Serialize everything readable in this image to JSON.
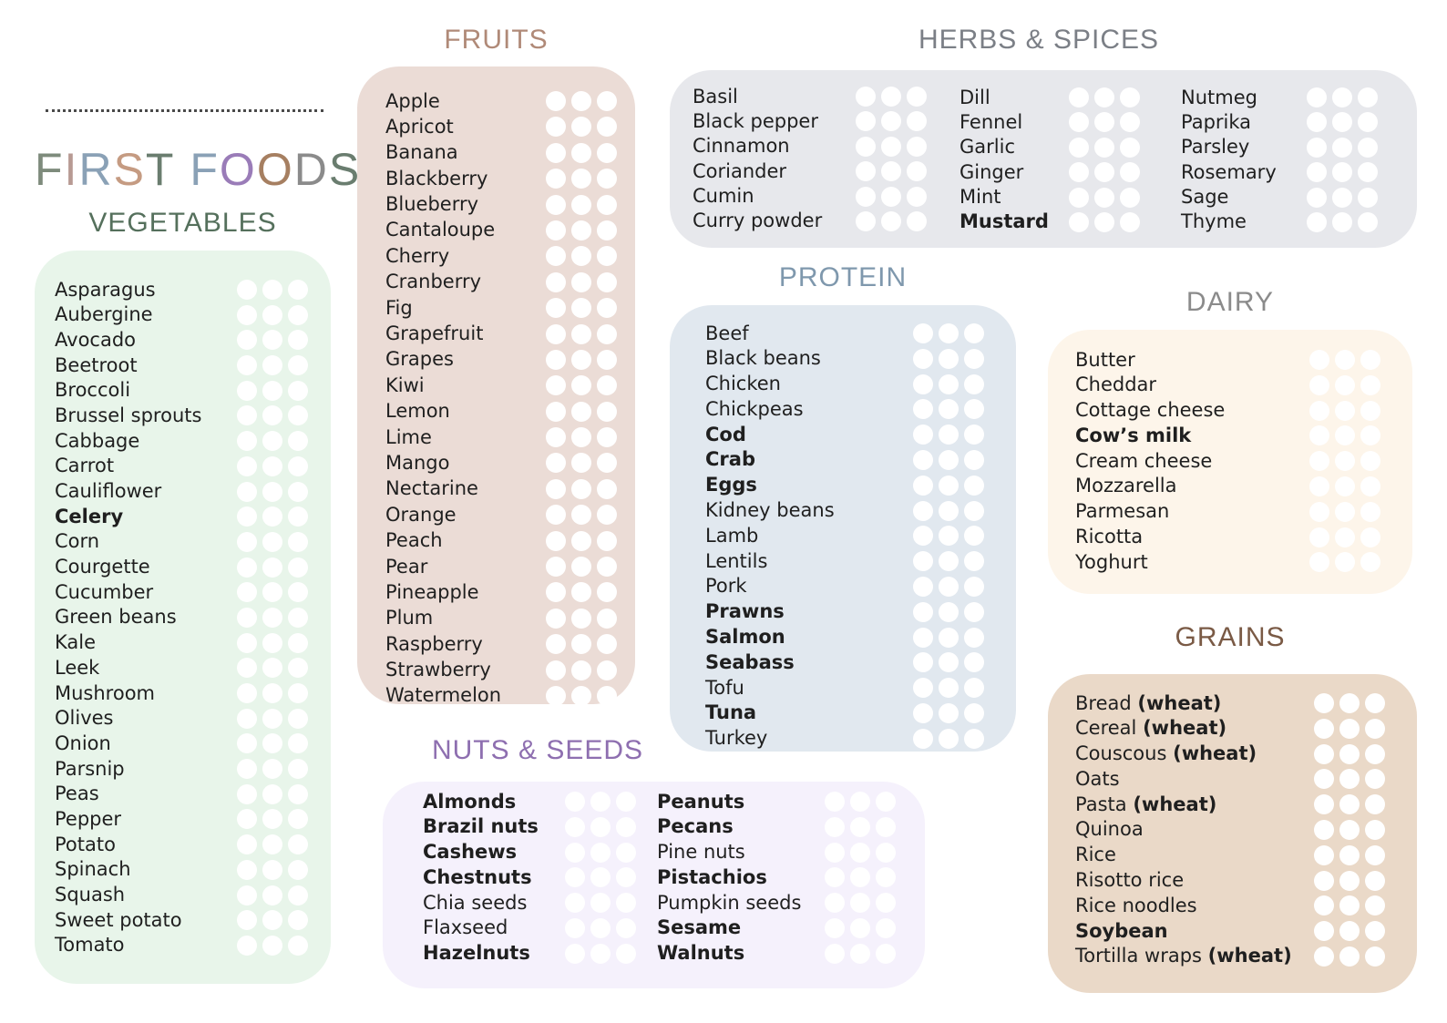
{
  "title": {
    "letters": [
      {
        "ch": "F",
        "color": "#7e8b7c"
      },
      {
        "ch": "I",
        "color": "#b79a93"
      },
      {
        "ch": "R",
        "color": "#8aa1b6"
      },
      {
        "ch": "S",
        "color": "#c59b82"
      },
      {
        "ch": "T",
        "color": "#6a7d6f"
      },
      {
        "ch": " ",
        "color": "#ffffff"
      },
      {
        "ch": "F",
        "color": "#8aa1b6"
      },
      {
        "ch": "O",
        "color": "#9a7cb8"
      },
      {
        "ch": "O",
        "color": "#a67f61"
      },
      {
        "ch": "D",
        "color": "#8b8b8b"
      },
      {
        "ch": "S",
        "color": "#6a7d6f"
      }
    ]
  },
  "sections": {
    "vegetables": {
      "heading": "VEGETABLES",
      "heading_color": "#55705c",
      "card_color": "#e8f5ea",
      "items": [
        {
          "name": "Asparagus",
          "bold": false
        },
        {
          "name": "Aubergine",
          "bold": false
        },
        {
          "name": "Avocado",
          "bold": false
        },
        {
          "name": "Beetroot",
          "bold": false
        },
        {
          "name": "Broccoli",
          "bold": false
        },
        {
          "name": "Brussel sprouts",
          "bold": false
        },
        {
          "name": "Cabbage",
          "bold": false
        },
        {
          "name": "Carrot",
          "bold": false
        },
        {
          "name": "Cauliflower",
          "bold": false
        },
        {
          "name": "Celery",
          "bold": true
        },
        {
          "name": "Corn",
          "bold": false
        },
        {
          "name": "Courgette",
          "bold": false
        },
        {
          "name": "Cucumber",
          "bold": false
        },
        {
          "name": "Green beans",
          "bold": false
        },
        {
          "name": "Kale",
          "bold": false
        },
        {
          "name": "Leek",
          "bold": false
        },
        {
          "name": "Mushroom",
          "bold": false
        },
        {
          "name": "Olives",
          "bold": false
        },
        {
          "name": "Onion",
          "bold": false
        },
        {
          "name": "Parsnip",
          "bold": false
        },
        {
          "name": "Peas",
          "bold": false
        },
        {
          "name": "Pepper",
          "bold": false
        },
        {
          "name": "Potato",
          "bold": false
        },
        {
          "name": "Spinach",
          "bold": false
        },
        {
          "name": "Squash",
          "bold": false
        },
        {
          "name": "Sweet potato",
          "bold": false
        },
        {
          "name": "Tomato",
          "bold": false
        }
      ]
    },
    "fruits": {
      "heading": "FRUITS",
      "heading_color": "#b08a78",
      "card_color": "#ebdcd6",
      "items": [
        {
          "name": "Apple",
          "bold": false
        },
        {
          "name": "Apricot",
          "bold": false
        },
        {
          "name": "Banana",
          "bold": false
        },
        {
          "name": "Blackberry",
          "bold": false
        },
        {
          "name": "Blueberry",
          "bold": false
        },
        {
          "name": "Cantaloupe",
          "bold": false
        },
        {
          "name": "Cherry",
          "bold": false
        },
        {
          "name": "Cranberry",
          "bold": false
        },
        {
          "name": "Fig",
          "bold": false
        },
        {
          "name": "Grapefruit",
          "bold": false
        },
        {
          "name": "Grapes",
          "bold": false
        },
        {
          "name": "Kiwi",
          "bold": false
        },
        {
          "name": "Lemon",
          "bold": false
        },
        {
          "name": "Lime",
          "bold": false
        },
        {
          "name": "Mango",
          "bold": false
        },
        {
          "name": "Nectarine",
          "bold": false
        },
        {
          "name": "Orange",
          "bold": false
        },
        {
          "name": "Peach",
          "bold": false
        },
        {
          "name": "Pear",
          "bold": false
        },
        {
          "name": "Pineapple",
          "bold": false
        },
        {
          "name": "Plum",
          "bold": false
        },
        {
          "name": "Raspberry",
          "bold": false
        },
        {
          "name": "Strawberry",
          "bold": false
        },
        {
          "name": "Watermelon",
          "bold": false
        }
      ]
    },
    "herbs_spices": {
      "heading": "HERBS & SPICES",
      "heading_color": "#7b7f86",
      "card_color": "#e7e8ec",
      "columns": [
        [
          {
            "name": "Basil",
            "bold": false
          },
          {
            "name": "Black pepper",
            "bold": false
          },
          {
            "name": "Cinnamon",
            "bold": false
          },
          {
            "name": "Coriander",
            "bold": false
          },
          {
            "name": "Cumin",
            "bold": false
          },
          {
            "name": "Curry powder",
            "bold": false
          }
        ],
        [
          {
            "name": "Dill",
            "bold": false
          },
          {
            "name": "Fennel",
            "bold": false
          },
          {
            "name": "Garlic",
            "bold": false
          },
          {
            "name": "Ginger",
            "bold": false
          },
          {
            "name": "Mint",
            "bold": false
          },
          {
            "name": "Mustard",
            "bold": true
          }
        ],
        [
          {
            "name": "Nutmeg",
            "bold": false
          },
          {
            "name": "Paprika",
            "bold": false
          },
          {
            "name": "Parsley",
            "bold": false
          },
          {
            "name": "Rosemary",
            "bold": false
          },
          {
            "name": "Sage",
            "bold": false
          },
          {
            "name": "Thyme",
            "bold": false
          }
        ]
      ]
    },
    "protein": {
      "heading": "PROTEIN",
      "heading_color": "#7f98ad",
      "card_color": "#e1e8ef",
      "items": [
        {
          "name": "Beef",
          "bold": false
        },
        {
          "name": "Black beans",
          "bold": false
        },
        {
          "name": "Chicken",
          "bold": false
        },
        {
          "name": "Chickpeas",
          "bold": false
        },
        {
          "name": "Cod",
          "bold": true
        },
        {
          "name": "Crab",
          "bold": true
        },
        {
          "name": "Eggs",
          "bold": true
        },
        {
          "name": "Kidney beans",
          "bold": false
        },
        {
          "name": "Lamb",
          "bold": false
        },
        {
          "name": "Lentils",
          "bold": false
        },
        {
          "name": "Pork",
          "bold": false
        },
        {
          "name": "Prawns",
          "bold": true
        },
        {
          "name": "Salmon",
          "bold": true
        },
        {
          "name": "Seabass",
          "bold": true
        },
        {
          "name": "Tofu",
          "bold": false
        },
        {
          "name": "Tuna",
          "bold": true
        },
        {
          "name": "Turkey",
          "bold": false
        }
      ]
    },
    "dairy": {
      "heading": "DAIRY",
      "heading_color": "#8b8b8b",
      "card_color": "#fdf5ea",
      "items": [
        {
          "name": "Butter",
          "bold": false
        },
        {
          "name": "Cheddar",
          "bold": false
        },
        {
          "name": "Cottage cheese",
          "bold": false
        },
        {
          "name": "Cow’s milk",
          "bold": true
        },
        {
          "name": "Cream cheese",
          "bold": false
        },
        {
          "name": "Mozzarella",
          "bold": false
        },
        {
          "name": "Parmesan",
          "bold": false
        },
        {
          "name": "Ricotta",
          "bold": false
        },
        {
          "name": "Yoghurt",
          "bold": false
        }
      ]
    },
    "grains": {
      "heading": "GRAINS",
      "heading_color": "#7a5a45",
      "card_color": "#ead9c8",
      "items": [
        {
          "name": "Bread",
          "paren": "(wheat)",
          "bold": false
        },
        {
          "name": "Cereal",
          "paren": "(wheat)",
          "bold": false
        },
        {
          "name": "Couscous",
          "paren": "(wheat)",
          "bold": false
        },
        {
          "name": "Oats",
          "bold": false
        },
        {
          "name": "Pasta",
          "paren": "(wheat)",
          "bold": false
        },
        {
          "name": "Quinoa",
          "bold": false
        },
        {
          "name": "Rice",
          "bold": false
        },
        {
          "name": "Risotto rice",
          "bold": false
        },
        {
          "name": "Rice noodles",
          "bold": false
        },
        {
          "name": "Soybean",
          "bold": true
        },
        {
          "name": "Tortilla wraps",
          "paren": "(wheat)",
          "bold": false
        }
      ]
    },
    "nuts_seeds": {
      "heading": "NUTS & SEEDS",
      "heading_color": "#8e6fb0",
      "card_color": "#f5f1fc",
      "columns": [
        [
          {
            "name": "Almonds",
            "bold": true
          },
          {
            "name": "Brazil nuts",
            "bold": true
          },
          {
            "name": "Cashews",
            "bold": true
          },
          {
            "name": "Chestnuts",
            "bold": true
          },
          {
            "name": "Chia seeds",
            "bold": false
          },
          {
            "name": "Flaxseed",
            "bold": false
          },
          {
            "name": "Hazelnuts",
            "bold": true
          }
        ],
        [
          {
            "name": "Peanuts",
            "bold": true
          },
          {
            "name": "Pecans",
            "bold": true
          },
          {
            "name": "Pine nuts",
            "bold": false
          },
          {
            "name": "Pistachios",
            "bold": true
          },
          {
            "name": "Pumpkin seeds",
            "bold": false
          },
          {
            "name": "Sesame",
            "bold": true
          },
          {
            "name": "Walnuts",
            "bold": true
          }
        ]
      ]
    }
  }
}
